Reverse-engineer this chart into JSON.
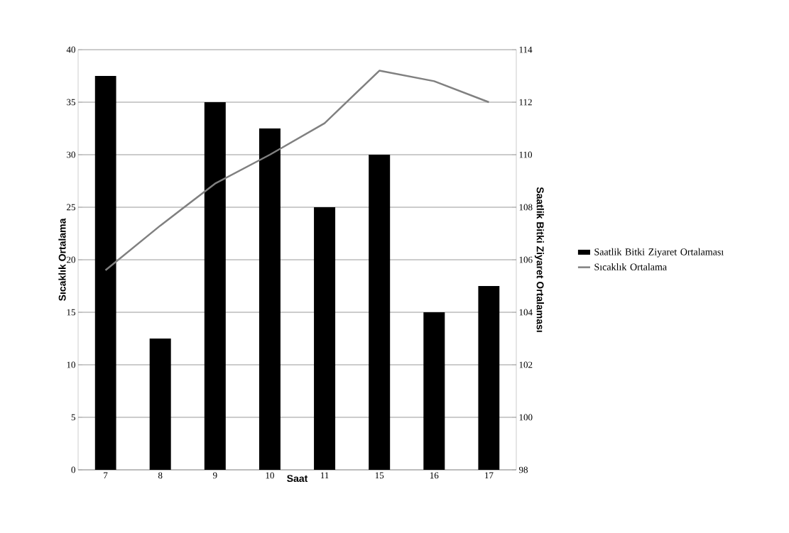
{
  "chart_data": {
    "type": "bar",
    "xlabel": "Saat",
    "ylabel": "Sıcaklık Ortalama",
    "y2label": "Saatlik Bitki Ziyaret Ortalaması",
    "categories": [
      "7",
      "8",
      "9",
      "10",
      "11",
      "15",
      "16",
      "17"
    ],
    "series": [
      {
        "name": "Saatlik Bitki Ziyaret Ortalaması",
        "color": "#000000",
        "values": [
          37.5,
          12.5,
          35,
          32.5,
          25,
          30,
          15,
          17.5
        ]
      },
      {
        "name": "Sıcaklık Ortalama",
        "type": "line",
        "axis": "y2",
        "color": "#808080",
        "values": [
          105.6,
          107.3,
          108.9,
          110,
          111.2,
          113.2,
          112.8,
          112
        ]
      }
    ],
    "ylim": [
      0,
      40
    ],
    "yticks": [
      0,
      5,
      10,
      15,
      20,
      25,
      30,
      35,
      40
    ],
    "y2lim": [
      98,
      114
    ],
    "y2ticks": [
      98,
      100,
      102,
      104,
      106,
      108,
      110,
      112,
      114
    ],
    "grid": "y",
    "legend": "right",
    "marker": "none",
    "line_style": "solid"
  }
}
